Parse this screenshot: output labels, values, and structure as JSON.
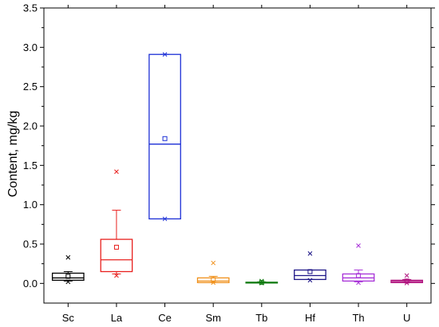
{
  "chart_data": {
    "type": "box",
    "ylabel": "Content, mg/kg",
    "xlabel": "",
    "ylim": [
      -0.25,
      3.5
    ],
    "yticks": [
      0.0,
      0.5,
      1.0,
      1.5,
      2.0,
      2.5,
      3.0,
      3.5
    ],
    "ytick_labels": [
      "0.0",
      "0.5",
      "1.0",
      "1.5",
      "2.0",
      "2.5",
      "3.0",
      "3.5"
    ],
    "categories": [
      "Sc",
      "La",
      "Ce",
      "Sm",
      "Tb",
      "Hf",
      "Th",
      "U"
    ],
    "boxes": [
      {
        "name": "Sc",
        "color": "#000000",
        "q1": 0.04,
        "median": 0.07,
        "q3": 0.13,
        "whisker_low": 0.03,
        "whisker_high": 0.15,
        "mean": 0.09,
        "min": 0.02,
        "max": 0.33
      },
      {
        "name": "La",
        "color": "#e8201e",
        "q1": 0.15,
        "median": 0.3,
        "q3": 0.56,
        "whisker_low": 0.12,
        "whisker_high": 0.93,
        "mean": 0.46,
        "min": 0.1,
        "max": 1.42
      },
      {
        "name": "Ce",
        "color": "#1c2fd6",
        "q1": 0.82,
        "median": 1.77,
        "q3": 2.91,
        "whisker_low": 0.82,
        "whisker_high": 2.91,
        "mean": 1.84,
        "min": 0.82,
        "max": 2.91
      },
      {
        "name": "Sm",
        "color": "#f0901a",
        "q1": 0.01,
        "median": 0.03,
        "q3": 0.07,
        "whisker_low": 0.01,
        "whisker_high": 0.09,
        "mean": 0.05,
        "min": 0.01,
        "max": 0.26
      },
      {
        "name": "Tb",
        "color": "#0f7a0f",
        "q1": 0.005,
        "median": 0.01,
        "q3": 0.015,
        "whisker_low": 0.005,
        "whisker_high": 0.02,
        "mean": 0.012,
        "min": 0.004,
        "max": 0.03
      },
      {
        "name": "Hf",
        "color": "#1d1587",
        "q1": 0.05,
        "median": 0.1,
        "q3": 0.17,
        "whisker_low": 0.05,
        "whisker_high": 0.17,
        "mean": 0.15,
        "min": 0.04,
        "max": 0.38
      },
      {
        "name": "Th",
        "color": "#a832d8",
        "q1": 0.03,
        "median": 0.07,
        "q3": 0.12,
        "whisker_low": 0.02,
        "whisker_high": 0.17,
        "mean": 0.1,
        "min": 0.01,
        "max": 0.48
      },
      {
        "name": "U",
        "color": "#b0127e",
        "q1": 0.01,
        "median": 0.025,
        "q3": 0.04,
        "whisker_low": 0.01,
        "whisker_high": 0.05,
        "mean": 0.03,
        "min": 0.005,
        "max": 0.1
      }
    ]
  }
}
